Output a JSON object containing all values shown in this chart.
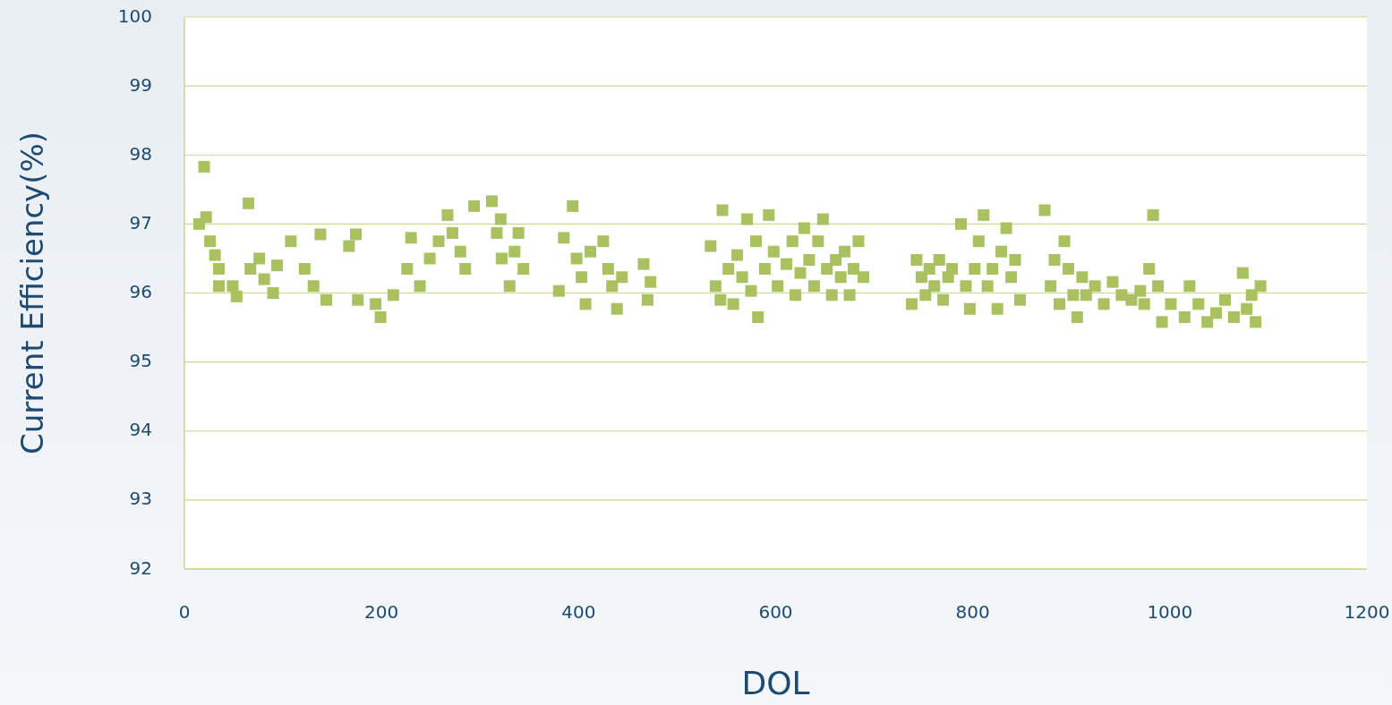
{
  "chart_data": {
    "type": "scatter",
    "xlabel": "DOL",
    "ylabel": "Current Efficiency(%)",
    "xlim": [
      0,
      1200
    ],
    "xticks": [
      0,
      200,
      400,
      600,
      800,
      1000,
      1200
    ],
    "ylim": [
      92,
      100
    ],
    "yticks": [
      92,
      93,
      94,
      95,
      96,
      97,
      98,
      99,
      100
    ],
    "grid": "y",
    "marker": "square",
    "series": [
      {
        "color": "#a9c15f",
        "x": [
          20,
          15,
          22,
          26,
          31,
          35,
          35,
          49,
          53,
          65,
          67,
          76,
          81,
          90,
          94,
          108,
          122,
          131,
          138,
          144,
          167,
          174,
          176,
          194,
          199,
          212,
          226,
          230,
          239,
          249,
          258,
          267,
          272,
          280,
          285,
          294,
          312,
          317,
          322,
          321,
          330,
          339,
          344,
          335,
          380,
          385,
          394,
          398,
          403,
          407,
          412,
          425,
          430,
          434,
          439,
          444,
          466,
          470,
          473,
          534,
          539,
          544,
          546,
          552,
          557,
          561,
          566,
          571,
          575,
          580,
          582,
          589,
          593,
          598,
          602,
          611,
          617,
          620,
          625,
          629,
          634,
          639,
          643,
          648,
          652,
          657,
          661,
          666,
          670,
          675,
          679,
          684,
          689,
          738,
          743,
          748,
          752,
          756,
          761,
          766,
          770,
          775,
          779,
          788,
          793,
          797,
          802,
          806,
          811,
          815,
          820,
          825,
          829,
          834,
          839,
          843,
          848,
          873,
          879,
          883,
          888,
          893,
          897,
          902,
          906,
          911,
          915,
          924,
          933,
          942,
          951,
          961,
          970,
          974,
          979,
          983,
          988,
          992,
          1001,
          1015,
          1020,
          1029,
          1038,
          1047,
          1056,
          1065,
          1074,
          1078,
          1083,
          1087,
          1092
        ],
        "values": [
          97.83,
          97.0,
          97.1,
          96.75,
          96.55,
          96.35,
          96.1,
          96.1,
          95.95,
          97.3,
          96.35,
          96.5,
          96.2,
          96.0,
          96.4,
          96.75,
          96.35,
          96.1,
          96.85,
          95.9,
          96.68,
          96.85,
          95.9,
          95.84,
          95.65,
          95.97,
          96.35,
          96.8,
          96.1,
          96.5,
          96.75,
          97.13,
          96.87,
          96.6,
          96.35,
          97.26,
          97.33,
          96.87,
          96.5,
          97.07,
          96.1,
          96.87,
          96.35,
          96.6,
          96.03,
          96.8,
          97.26,
          96.5,
          96.23,
          95.84,
          96.6,
          96.75,
          96.35,
          96.1,
          95.77,
          96.23,
          96.42,
          95.9,
          96.16,
          96.68,
          96.1,
          95.9,
          97.2,
          96.35,
          95.84,
          96.55,
          96.23,
          97.07,
          96.03,
          96.75,
          95.65,
          96.35,
          97.13,
          96.6,
          96.1,
          96.42,
          96.75,
          95.97,
          96.29,
          96.94,
          96.48,
          96.1,
          96.75,
          97.07,
          96.35,
          95.97,
          96.48,
          96.23,
          96.6,
          95.97,
          96.35,
          96.75,
          96.23,
          95.84,
          96.48,
          96.23,
          95.97,
          96.35,
          96.1,
          96.48,
          95.9,
          96.23,
          96.35,
          97.0,
          96.1,
          95.77,
          96.35,
          96.75,
          97.13,
          96.1,
          96.35,
          95.77,
          96.6,
          96.94,
          96.23,
          96.48,
          95.9,
          97.2,
          96.1,
          96.48,
          95.84,
          96.75,
          96.35,
          95.97,
          95.65,
          96.23,
          95.97,
          96.1,
          95.84,
          96.16,
          95.97,
          95.9,
          96.03,
          95.84,
          96.35,
          97.13,
          96.1,
          95.58,
          95.84,
          95.65,
          96.1,
          95.84,
          95.58,
          95.71,
          95.9,
          95.65,
          96.29,
          95.77,
          95.97,
          95.58,
          96.1
        ]
      }
    ]
  }
}
